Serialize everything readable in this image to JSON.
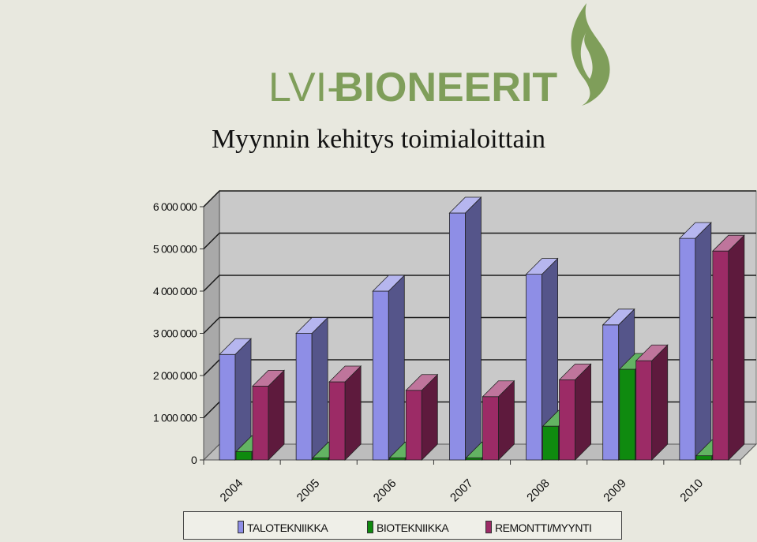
{
  "logo": {
    "text_light": "LVI-",
    "text_bold": "BIONEERIT",
    "color": "#7f9e5a"
  },
  "chart_data": {
    "type": "bar",
    "title": "Myynnin kehitys toimialoittain",
    "categories": [
      "2004",
      "2005",
      "2006",
      "2007",
      "2008",
      "2009",
      "2010"
    ],
    "series": [
      {
        "name": "TALOTEKNIIKKA",
        "color": "#8e8ee6",
        "values": [
          2500000,
          3000000,
          4000000,
          5850000,
          4400000,
          3200000,
          5250000
        ]
      },
      {
        "name": "BIOTEKNIIKKA",
        "color": "#0f8a0f",
        "values": [
          200000,
          50000,
          50000,
          50000,
          800000,
          2150000,
          100000
        ]
      },
      {
        "name": "REMONTTI/MYYNTI",
        "color": "#9c2b66",
        "values": [
          1750000,
          1850000,
          1650000,
          1500000,
          1900000,
          2350000,
          4950000
        ]
      }
    ],
    "y_ticks": [
      "0",
      "1 000 000",
      "2 000 000",
      "3 000 000",
      "4 000 000",
      "5 000 000",
      "6 000 000"
    ],
    "ylim": [
      0,
      6000000
    ],
    "grid": true,
    "legend": "bottom",
    "style": "3d-column"
  }
}
